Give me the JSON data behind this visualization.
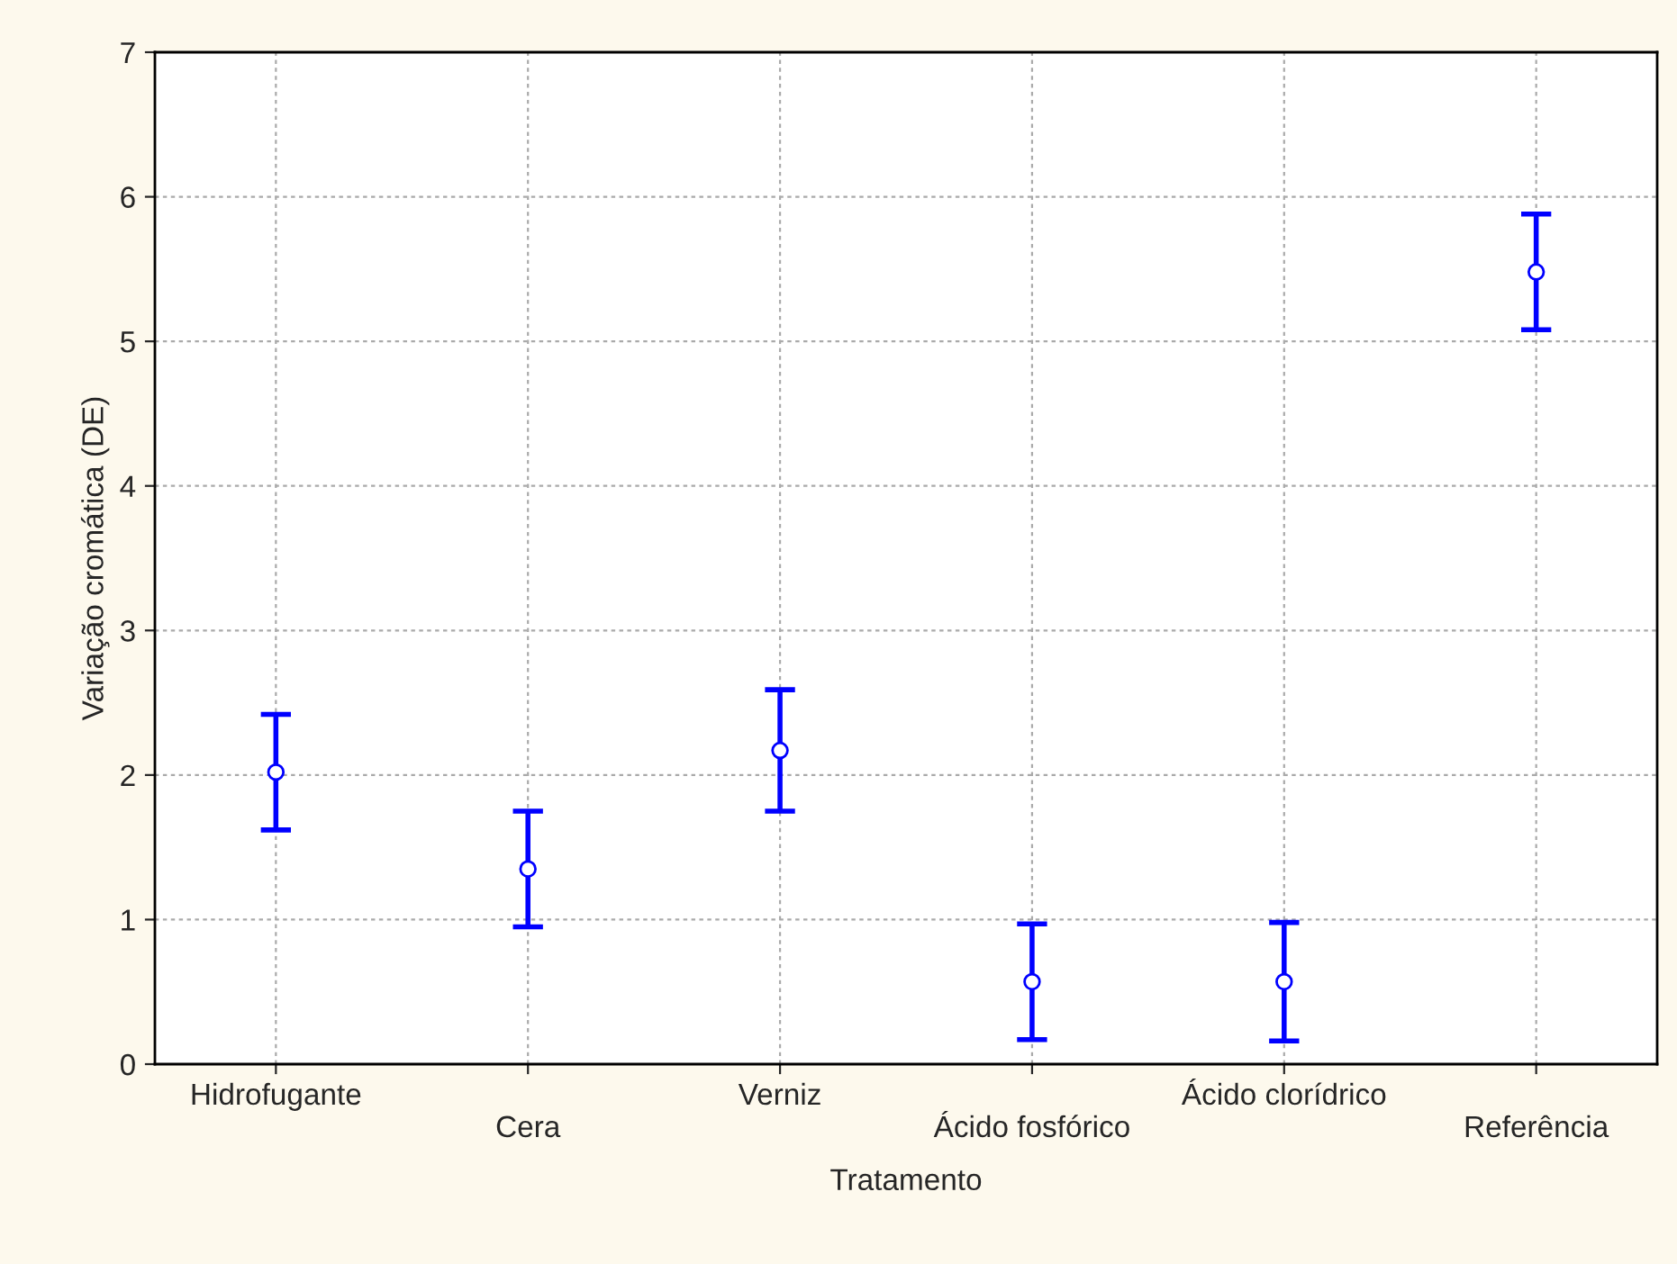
{
  "chart_data": {
    "type": "scatter",
    "xlabel": "Tratamento",
    "ylabel": "Variação cromática (DE)",
    "categories": [
      "Hidrofugante",
      "Cera",
      "Verniz",
      "Ácido fosfórico",
      "Ácido clorídrico",
      "Referência"
    ],
    "series": [
      {
        "color": "#0000ff",
        "values": [
          2.02,
          1.35,
          2.17,
          0.57,
          0.57,
          5.48
        ],
        "errors": [
          0.4,
          0.4,
          0.42,
          0.4,
          0.41,
          0.4
        ]
      }
    ],
    "ylim": [
      0,
      7
    ],
    "yticks": [
      0,
      1,
      2,
      3,
      4,
      5,
      6,
      7
    ],
    "grid": true,
    "marker": "circle"
  }
}
